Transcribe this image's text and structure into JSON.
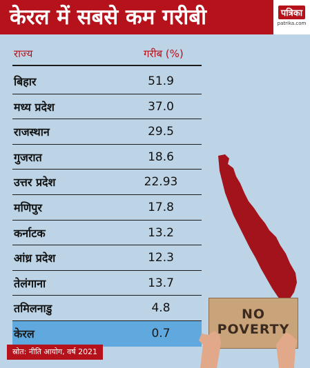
{
  "header": {
    "title": "केरल में सबसे कम गरीबी",
    "logo_text": "पत्रिका",
    "logo_sub": "patrika.com"
  },
  "table": {
    "columns": [
      "राज्य",
      "गरीब (%)"
    ],
    "rows": [
      {
        "state": "बिहार",
        "value": "51.9"
      },
      {
        "state": "मध्य प्रदेश",
        "value": "37.0"
      },
      {
        "state": "राजस्थान",
        "value": "29.5"
      },
      {
        "state": "गुजरात",
        "value": "18.6"
      },
      {
        "state": "उत्तर प्रदेश",
        "value": "22.93"
      },
      {
        "state": "मणिपुर",
        "value": "17.8"
      },
      {
        "state": "कर्नाटक",
        "value": "13.2"
      },
      {
        "state": "आंध्र प्रदेश",
        "value": "12.3"
      },
      {
        "state": "तेलंगाना",
        "value": "13.7"
      },
      {
        "state": "तमिलनाडु",
        "value": "4.8"
      },
      {
        "state": "केरल",
        "value": "0.7"
      }
    ]
  },
  "source": "स्रोत: नीति आयोग, वर्ष 2021",
  "sign_text": "NO\nPOVERTY",
  "colors": {
    "background": "#bcd4e6",
    "banner": "#b5121b",
    "highlight": "#5fa9df",
    "map": "#a3131c"
  }
}
